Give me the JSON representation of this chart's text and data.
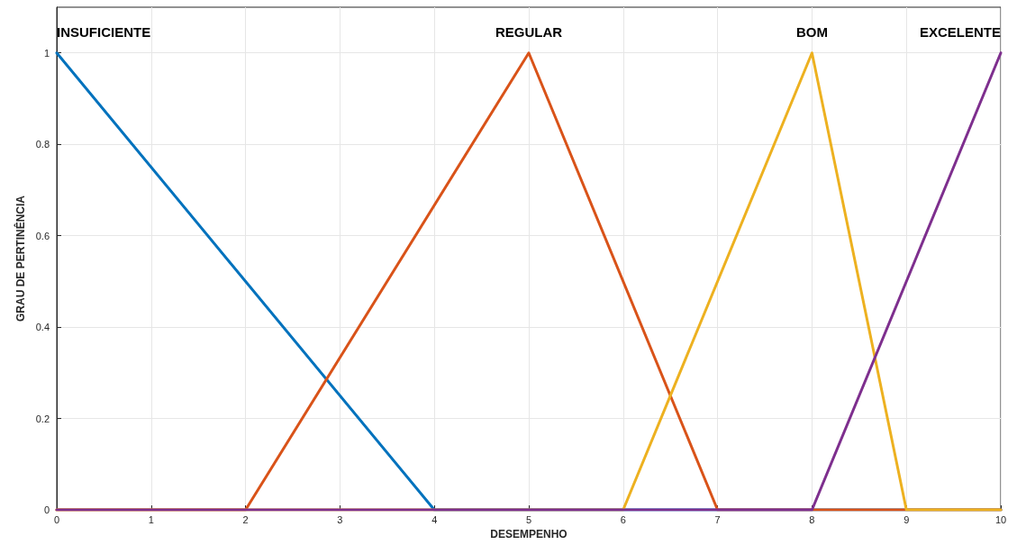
{
  "chart_data": {
    "type": "line",
    "xlabel": "DESEMPENHO",
    "ylabel": "GRAU DE PERTINÊNCIA",
    "series": [
      {
        "name": "INSUFICIENTE",
        "color": "#0072bd",
        "x": [
          0,
          4,
          10
        ],
        "values": [
          1,
          0,
          0
        ]
      },
      {
        "name": "REGULAR",
        "color": "#d95319",
        "x": [
          0,
          2,
          5,
          7,
          10
        ],
        "values": [
          0,
          0,
          1,
          0,
          0
        ]
      },
      {
        "name": "BOM",
        "color": "#edb120",
        "x": [
          0,
          6,
          8,
          9,
          10
        ],
        "values": [
          0,
          0,
          1,
          0,
          0
        ]
      },
      {
        "name": "EXCELENTE",
        "color": "#7e2f8e",
        "x": [
          0,
          8,
          10
        ],
        "values": [
          0,
          0,
          1
        ]
      }
    ],
    "xlim": [
      0,
      10
    ],
    "xticks": [
      0,
      1,
      2,
      3,
      4,
      5,
      6,
      7,
      8,
      9,
      10
    ],
    "ylim": [
      0,
      1.1
    ],
    "yticks": [
      0,
      0.2,
      0.4,
      0.6,
      0.8,
      1
    ],
    "grid": true,
    "marker": "none",
    "line_style": "solid"
  }
}
